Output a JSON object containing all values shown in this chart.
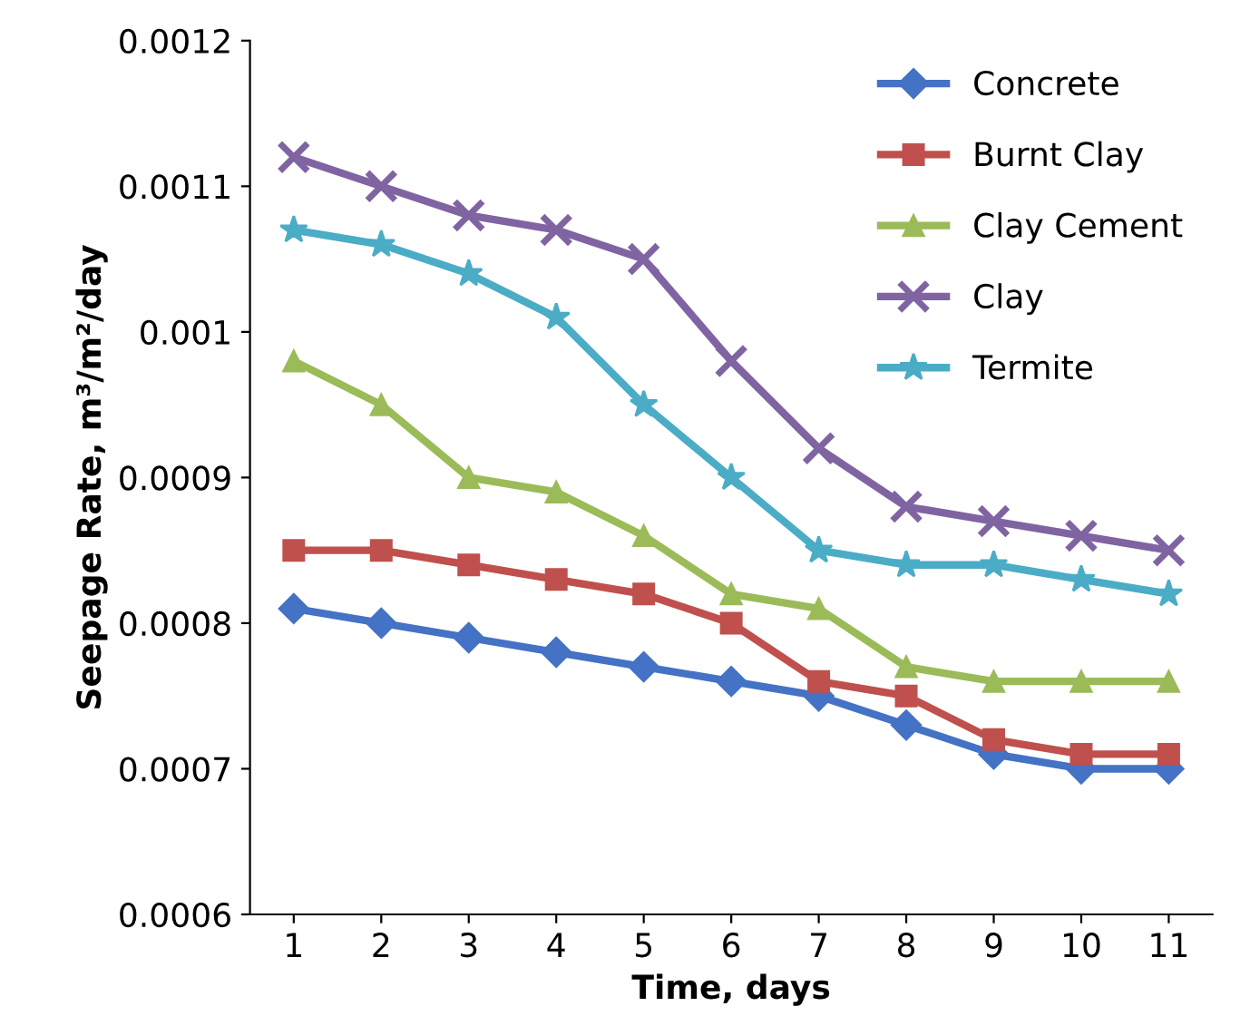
{
  "chart_data": {
    "type": "line",
    "xlabel": "Time, days",
    "ylabel": "Seepage Rate, m³/m²/day",
    "categories": [
      "1",
      "2",
      "3",
      "4",
      "5",
      "6",
      "7",
      "8",
      "9",
      "10",
      "11"
    ],
    "ylim": [
      0.0006,
      0.0012
    ],
    "yticks": [
      {
        "value": 0.0006,
        "label": "0.0006"
      },
      {
        "value": 0.0007,
        "label": "0.0007"
      },
      {
        "value": 0.0008,
        "label": "0.0008"
      },
      {
        "value": 0.0009,
        "label": "0.0009"
      },
      {
        "value": 0.001,
        "label": "0.001"
      },
      {
        "value": 0.0011,
        "label": "0.0011"
      },
      {
        "value": 0.0012,
        "label": "0.0012"
      }
    ],
    "grid": false,
    "legend": "top right",
    "line_style": "solid",
    "series": [
      {
        "name": "Concrete",
        "color": "#4472c4",
        "marker": "diamond",
        "values": [
          0.00081,
          0.0008,
          0.00079,
          0.00078,
          0.00077,
          0.00076,
          0.00075,
          0.00073,
          0.00071,
          0.0007,
          0.0007
        ]
      },
      {
        "name": "Burnt Clay",
        "color": "#c0504d",
        "marker": "square",
        "values": [
          0.00085,
          0.00085,
          0.00084,
          0.00083,
          0.00082,
          0.0008,
          0.00076,
          0.00075,
          0.00072,
          0.00071,
          0.00071
        ]
      },
      {
        "name": "Clay Cement",
        "color": "#9bbb59",
        "marker": "triangle",
        "values": [
          0.00098,
          0.00095,
          0.0009,
          0.00089,
          0.00086,
          0.00082,
          0.00081,
          0.00077,
          0.00076,
          0.00076,
          0.00076
        ]
      },
      {
        "name": "Clay",
        "color": "#8064a2",
        "marker": "cross",
        "values": [
          0.00112,
          0.0011,
          0.00108,
          0.00107,
          0.00105,
          0.00098,
          0.00092,
          0.00088,
          0.00087,
          0.00086,
          0.00085
        ]
      },
      {
        "name": "Termite",
        "color": "#4bacc6",
        "marker": "star",
        "values": [
          0.00107,
          0.00106,
          0.00104,
          0.00101,
          0.00095,
          0.0009,
          0.00085,
          0.00084,
          0.00084,
          0.00083,
          0.00082
        ]
      }
    ]
  }
}
